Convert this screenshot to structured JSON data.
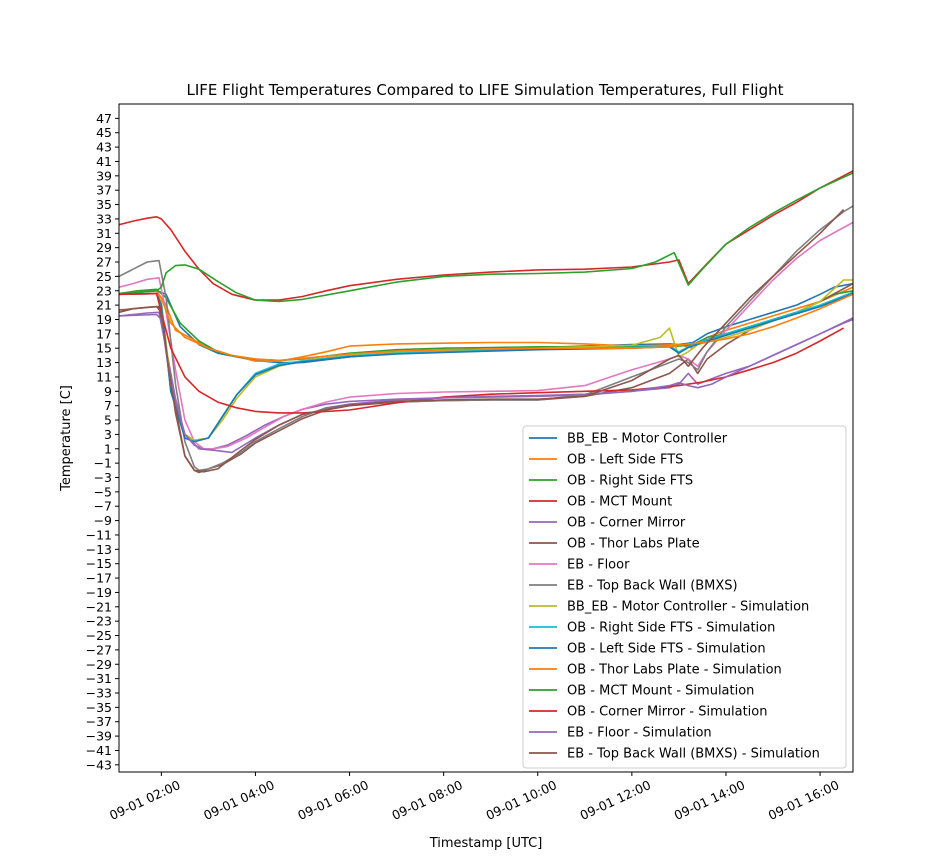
{
  "chart_data": {
    "type": "line",
    "title": "LIFE Flight Temperatures Compared to LIFE Simulation Temperatures, Full Flight",
    "xlabel": "Timestamp [UTC]",
    "ylabel": "Temperature [C]",
    "xlim": [
      1.1,
      16.7
    ],
    "ylim": [
      -44,
      49
    ],
    "x_ticks": [
      2,
      4,
      6,
      8,
      10,
      12,
      14,
      16
    ],
    "x_tick_labels": [
      "09-01 02:00",
      "09-01 04:00",
      "09-01 06:00",
      "09-01 08:00",
      "09-01 10:00",
      "09-01 12:00",
      "09-01 14:00",
      "09-01 16:00"
    ],
    "y_ticks": [
      -43,
      -41,
      -39,
      -37,
      -35,
      -33,
      -31,
      -29,
      -27,
      -25,
      -23,
      -21,
      -19,
      -17,
      -15,
      -13,
      -11,
      -9,
      -7,
      -5,
      -3,
      -1,
      1,
      3,
      5,
      7,
      9,
      11,
      13,
      15,
      17,
      19,
      21,
      23,
      25,
      27,
      29,
      31,
      33,
      35,
      37,
      39,
      41,
      43,
      45,
      47
    ],
    "grid": false,
    "legend_position": "lower-right",
    "series": [
      {
        "name": "BB_EB - Motor Controller",
        "color": "#1f77b4",
        "x": [
          1.1,
          1.5,
          1.9,
          2.1,
          2.4,
          2.8,
          3.2,
          3.6,
          4.0,
          4.5,
          5.0,
          6.0,
          7.0,
          8.0,
          9.0,
          10.0,
          11.0,
          12.0,
          12.8,
          13.0,
          13.3,
          13.6,
          14.0,
          14.5,
          15.0,
          15.5,
          16.0,
          16.3,
          16.7
        ],
        "y": [
          22.5,
          23,
          23,
          22.5,
          18,
          15.5,
          14.3,
          13.8,
          13.3,
          13,
          13,
          13.8,
          14.3,
          14.6,
          14.9,
          15.1,
          15.3,
          15.5,
          15.6,
          15.5,
          15.8,
          17,
          18,
          19,
          20,
          21,
          22.5,
          23.5,
          24
        ]
      },
      {
        "name": "OB - Left Side FTS",
        "color": "#ff7f0e",
        "x": [
          1.1,
          1.5,
          1.9,
          2.1,
          2.3,
          2.6,
          3.0,
          3.5,
          4.0,
          4.5,
          5.0,
          5.5,
          6.0,
          7.0,
          8.0,
          9.0,
          10.0,
          11.0,
          12.0,
          13.0,
          13.3,
          13.6,
          14.0,
          14.5,
          15.0,
          15.5,
          16.0,
          16.7
        ],
        "y": [
          22.5,
          23,
          23,
          21,
          17.5,
          16.5,
          15,
          14,
          13.2,
          13.2,
          13.8,
          14.5,
          15.3,
          15.6,
          15.7,
          15.8,
          15.8,
          15.6,
          15.3,
          15.5,
          15,
          16.5,
          17.5,
          18.5,
          19.5,
          20.5,
          21.5,
          23.5
        ]
      },
      {
        "name": "OB - Right Side FTS",
        "color": "#2ca02c",
        "x": [
          1.1,
          1.5,
          1.9,
          2.1,
          2.4,
          2.8,
          3.2,
          3.6,
          4.0,
          4.5,
          5.0,
          6.0,
          7.0,
          8.0,
          9.0,
          10.0,
          11.0,
          12.0,
          12.8,
          13.0,
          13.3,
          13.6,
          14.0,
          14.5,
          15.0,
          15.5,
          16.0,
          16.3,
          16.7
        ],
        "y": [
          22.6,
          23,
          23.2,
          22,
          18.5,
          16,
          14.5,
          13.8,
          13.5,
          13.3,
          13.5,
          14.3,
          14.8,
          15,
          15.1,
          15.2,
          15.2,
          15.2,
          15.2,
          15.3,
          15.5,
          16.5,
          17,
          18,
          19,
          20,
          21.5,
          22.5,
          23
        ]
      },
      {
        "name": "OB - MCT Mount",
        "color": "#d62728",
        "x": [
          1.1,
          1.4,
          1.7,
          1.9,
          2.0,
          2.2,
          2.5,
          2.8,
          3.1,
          3.5,
          4.0,
          4.5,
          5.0,
          5.5,
          6.0,
          7.0,
          8.0,
          9.0,
          10.0,
          11.0,
          12.0,
          12.8,
          13.0,
          13.2,
          13.6,
          14.0,
          14.5,
          15.0,
          15.5,
          16.0,
          16.5,
          16.7
        ],
        "y": [
          32.2,
          32.7,
          33.1,
          33.3,
          33,
          31.5,
          28.5,
          26,
          24,
          22.5,
          21.7,
          21.7,
          22.2,
          23,
          23.7,
          24.6,
          25.2,
          25.6,
          25.9,
          26,
          26.3,
          27,
          27.3,
          24,
          26.8,
          29.5,
          31.5,
          33.5,
          35.3,
          37.3,
          39,
          39.7
        ]
      },
      {
        "name": "OB - Corner Mirror",
        "color": "#9467bd",
        "x": [
          1.1,
          1.4,
          1.7,
          1.95,
          2.1,
          2.3,
          2.5,
          2.7,
          2.9,
          3.1,
          3.4,
          3.8,
          4.2,
          4.6,
          5.0,
          5.5,
          6.0,
          7.0,
          8.0,
          9.0,
          10.0,
          11.0,
          12.0,
          12.8,
          13.0,
          13.2,
          13.4,
          13.6,
          14.0,
          14.5,
          15.0,
          15.5,
          16.0,
          16.5,
          16.7
        ],
        "y": [
          19.5,
          19.7,
          19.9,
          20,
          15,
          8,
          3,
          1.5,
          1,
          1,
          1.5,
          2.8,
          4.3,
          5.5,
          6.5,
          7.2,
          7.6,
          7.9,
          8.1,
          8.2,
          8.3,
          8.5,
          9,
          9.5,
          10,
          11.5,
          10,
          10.5,
          11.5,
          12.5,
          14,
          15.5,
          17,
          18.5,
          19
        ]
      },
      {
        "name": "OB - Thor Labs Plate",
        "color": "#8c564b",
        "x": [
          1.1,
          1.4,
          1.7,
          1.95,
          2.1,
          2.3,
          2.5,
          2.7,
          2.8,
          3.0,
          3.3,
          3.7,
          4.0,
          4.5,
          5.0,
          5.5,
          6.0,
          7.0,
          8.0,
          9.0,
          10.0,
          11.0,
          12.0,
          12.8,
          13.0,
          13.2,
          13.4,
          13.6,
          14.0,
          14.5,
          15.0,
          15.5,
          16.0,
          16.7
        ],
        "y": [
          20,
          20.5,
          20.7,
          20.8,
          15,
          6,
          0,
          -2,
          -2.3,
          -1.8,
          -1.2,
          0.3,
          1.8,
          3.5,
          5.2,
          6.4,
          7,
          7.5,
          7.7,
          7.8,
          7.8,
          8.3,
          9.5,
          11.5,
          12.5,
          13.5,
          11.5,
          13.5,
          15.5,
          17.5,
          19,
          20,
          21.5,
          24
        ]
      },
      {
        "name": "EB - Floor",
        "color": "#e377c2",
        "x": [
          1.1,
          1.4,
          1.7,
          1.95,
          2.1,
          2.3,
          2.5,
          2.7,
          2.9,
          3.1,
          3.4,
          3.8,
          4.2,
          4.6,
          5.0,
          5.5,
          6.0,
          7.0,
          8.0,
          9.0,
          10.0,
          11.0,
          12.0,
          12.8,
          13.0,
          13.2,
          13.4,
          13.6,
          14.0,
          14.5,
          15.0,
          15.5,
          16.0,
          16.5,
          16.7
        ],
        "y": [
          23.5,
          24,
          24.6,
          24.8,
          20,
          12,
          5,
          2,
          1,
          1,
          1.3,
          2.5,
          4,
          5.5,
          6.5,
          7.5,
          8.2,
          8.7,
          8.9,
          9,
          9.1,
          9.8,
          12,
          13.5,
          14,
          13.5,
          12.5,
          14.5,
          17.5,
          21,
          24.5,
          27.5,
          30,
          31.8,
          32.5
        ]
      },
      {
        "name": "EB - Top Back Wall (BMXS)",
        "color": "#7f7f7f",
        "x": [
          1.1,
          1.4,
          1.7,
          1.95,
          2.1,
          2.3,
          2.5,
          2.7,
          2.8,
          3.0,
          3.3,
          3.7,
          4.0,
          4.5,
          5.0,
          5.5,
          6.0,
          7.0,
          8.0,
          9.0,
          10.0,
          11.0,
          12.0,
          12.8,
          13.0,
          13.2,
          13.4,
          13.6,
          14.0,
          14.5,
          15.0,
          15.5,
          16.0,
          16.5,
          16.7
        ],
        "y": [
          25,
          26,
          27,
          27.2,
          22,
          10,
          2,
          -1.5,
          -2,
          -1.8,
          -1,
          0.5,
          2,
          3.8,
          5.5,
          6.7,
          7.2,
          7.5,
          7.7,
          7.8,
          7.8,
          8.5,
          11,
          13,
          13.5,
          13,
          12,
          14.5,
          18,
          21.5,
          25,
          28.5,
          31.5,
          34,
          34.8
        ]
      },
      {
        "name": "BB_EB - Motor Controller - Simulation",
        "color": "#bcbd22",
        "x": [
          1.1,
          1.9,
          2.0,
          2.2,
          2.5,
          2.7,
          3.0,
          3.3,
          3.6,
          4.0,
          4.5,
          5.0,
          6.0,
          7.0,
          8.0,
          9.0,
          10.0,
          11.0,
          12.0,
          12.6,
          12.8,
          13.0,
          13.2,
          13.4,
          13.7,
          14.0,
          14.5,
          15.0,
          15.5,
          16.0,
          16.5,
          16.7
        ],
        "y": [
          22.5,
          22.6,
          21.5,
          10,
          3,
          2.2,
          2.5,
          5,
          8,
          11,
          12.5,
          13.3,
          14,
          14.4,
          14.7,
          14.9,
          15,
          15.2,
          15.4,
          16.5,
          17.8,
          13.8,
          14.5,
          15.5,
          16,
          16.5,
          17.5,
          18.8,
          20,
          21.5,
          24.5,
          24.5
        ]
      },
      {
        "name": "OB - Right Side FTS - Simulation",
        "color": "#17becf",
        "x": [
          1.1,
          1.9,
          2.0,
          2.2,
          2.5,
          2.7,
          3.0,
          3.3,
          3.6,
          4.0,
          4.5,
          5.0,
          6.0,
          7.0,
          8.0,
          9.0,
          10.0,
          11.0,
          12.0,
          12.8,
          13.0,
          13.2,
          13.5,
          14.0,
          14.5,
          15.0,
          15.5,
          16.0,
          16.7
        ],
        "y": [
          22.5,
          22.6,
          21,
          9,
          2.5,
          2,
          2.5,
          5.5,
          8.5,
          11.5,
          12.8,
          13.2,
          13.9,
          14.3,
          14.5,
          14.7,
          14.9,
          15,
          15.1,
          15.3,
          14.5,
          15.2,
          16,
          17,
          18,
          19,
          20,
          21,
          22.8
        ]
      },
      {
        "name": "OB - Left Side FTS - Simulation",
        "color": "#1f77b4",
        "x": [
          1.1,
          1.9,
          2.0,
          2.2,
          2.5,
          2.7,
          3.0,
          3.3,
          3.6,
          4.0,
          4.5,
          5.0,
          6.0,
          7.0,
          8.0,
          9.0,
          10.0,
          11.0,
          12.0,
          12.8,
          13.0,
          13.2,
          13.5,
          14.0,
          14.5,
          15.0,
          15.5,
          16.0,
          16.7
        ],
        "y": [
          22.5,
          22.6,
          21,
          9,
          2.5,
          2,
          2.5,
          5.5,
          8.5,
          11.3,
          12.6,
          13.1,
          13.8,
          14.2,
          14.4,
          14.6,
          14.8,
          14.9,
          15,
          15.2,
          14.3,
          15.1,
          15.8,
          16.8,
          17.8,
          18.8,
          19.8,
          20.8,
          22.6
        ]
      },
      {
        "name": "OB - Thor Labs Plate - Simulation",
        "color": "#ff7f0e",
        "x": [
          1.1,
          1.9,
          2.0,
          2.2,
          2.5,
          3.0,
          3.5,
          4.0,
          4.5,
          5.0,
          6.0,
          7.0,
          8.0,
          9.0,
          10.0,
          11.0,
          12.0,
          12.8,
          13.0,
          13.2,
          13.5,
          14.0,
          14.5,
          15.0,
          15.5,
          16.0,
          16.7
        ],
        "y": [
          22.5,
          22.6,
          22,
          18.5,
          16.5,
          15,
          14,
          13.5,
          13.3,
          13.6,
          14.2,
          14.6,
          14.8,
          14.9,
          15,
          15,
          15,
          15.2,
          15.4,
          15.6,
          15.8,
          16.3,
          17,
          18,
          19.2,
          20.5,
          22.5
        ]
      },
      {
        "name": "OB - MCT Mount - Simulation",
        "color": "#2ca02c",
        "x": [
          1.1,
          1.9,
          2.0,
          2.1,
          2.3,
          2.5,
          2.8,
          3.2,
          3.6,
          4.0,
          4.5,
          5.0,
          6.0,
          7.0,
          8.0,
          9.0,
          10.0,
          11.0,
          12.0,
          12.5,
          12.9,
          13.2,
          13.5,
          14.0,
          14.5,
          15.0,
          15.5,
          16.0,
          16.5,
          16.7
        ],
        "y": [
          22.5,
          23,
          23.5,
          25.5,
          26.5,
          26.6,
          26,
          24.3,
          22.7,
          21.7,
          21.5,
          21.8,
          23,
          24.2,
          25,
          25.3,
          25.4,
          25.6,
          26.1,
          27,
          28.3,
          23.8,
          26,
          29.5,
          31.8,
          33.8,
          35.6,
          37.3,
          38.8,
          39.4
        ]
      },
      {
        "name": "OB - Corner Mirror - Simulation",
        "color": "#d62728",
        "x": [
          1.1,
          1.9,
          2.0,
          2.2,
          2.5,
          2.8,
          3.2,
          3.6,
          4.0,
          4.5,
          5.0,
          6.0,
          7.0,
          8.0,
          9.0,
          10.0,
          11.0,
          12.0,
          13.0,
          13.5,
          14.0,
          14.5,
          15.0,
          15.5,
          16.0,
          16.5
        ],
        "y": [
          22.5,
          22.6,
          20,
          15,
          11,
          9,
          7.5,
          6.7,
          6.2,
          6.0,
          6.0,
          6.4,
          7.4,
          8.2,
          8.6,
          8.8,
          9.0,
          9.2,
          9.8,
          10.3,
          11,
          12,
          13,
          14.3,
          16,
          17.8
        ]
      },
      {
        "name": "EB - Floor - Simulation",
        "color": "#9467bd",
        "x": [
          1.1,
          1.9,
          2.0,
          2.2,
          2.5,
          2.8,
          3.1,
          3.5,
          4.0,
          4.5,
          5.0,
          6.0,
          7.0,
          8.0,
          9.0,
          10.0,
          11.0,
          12.0,
          12.8,
          13.0,
          13.2,
          13.4,
          13.7,
          14.0,
          14.5,
          15.0,
          15.5,
          16.0,
          16.7
        ],
        "y": [
          19.5,
          19.7,
          19,
          10,
          3,
          1,
          0.8,
          0.5,
          2.5,
          4.3,
          5.8,
          7.2,
          7.8,
          8.1,
          8.3,
          8.4,
          8.6,
          9.0,
          9.8,
          10.2,
          9.8,
          9.5,
          10,
          11,
          12.5,
          14,
          15.5,
          17,
          19.2
        ]
      },
      {
        "name": "EB - Top Back Wall (BMXS) - Simulation",
        "color": "#8c564b",
        "x": [
          1.1,
          1.9,
          2.0,
          2.2,
          2.5,
          2.7,
          2.9,
          3.2,
          3.6,
          4.0,
          4.5,
          5.0,
          6.0,
          7.0,
          8.0,
          9.0,
          10.0,
          11.0,
          12.0,
          12.8,
          13.0,
          13.2,
          13.5,
          14.0,
          14.5,
          15.0,
          15.5,
          16.0,
          16.5
        ],
        "y": [
          20.3,
          20.8,
          20,
          10,
          0,
          -2,
          -2.2,
          -1.8,
          0.3,
          2.3,
          4.3,
          5.8,
          7.1,
          7.6,
          7.8,
          7.9,
          7.9,
          8.3,
          10.5,
          13.5,
          14,
          12.5,
          15,
          18.5,
          22,
          25,
          28,
          31,
          34.3
        ]
      }
    ]
  }
}
